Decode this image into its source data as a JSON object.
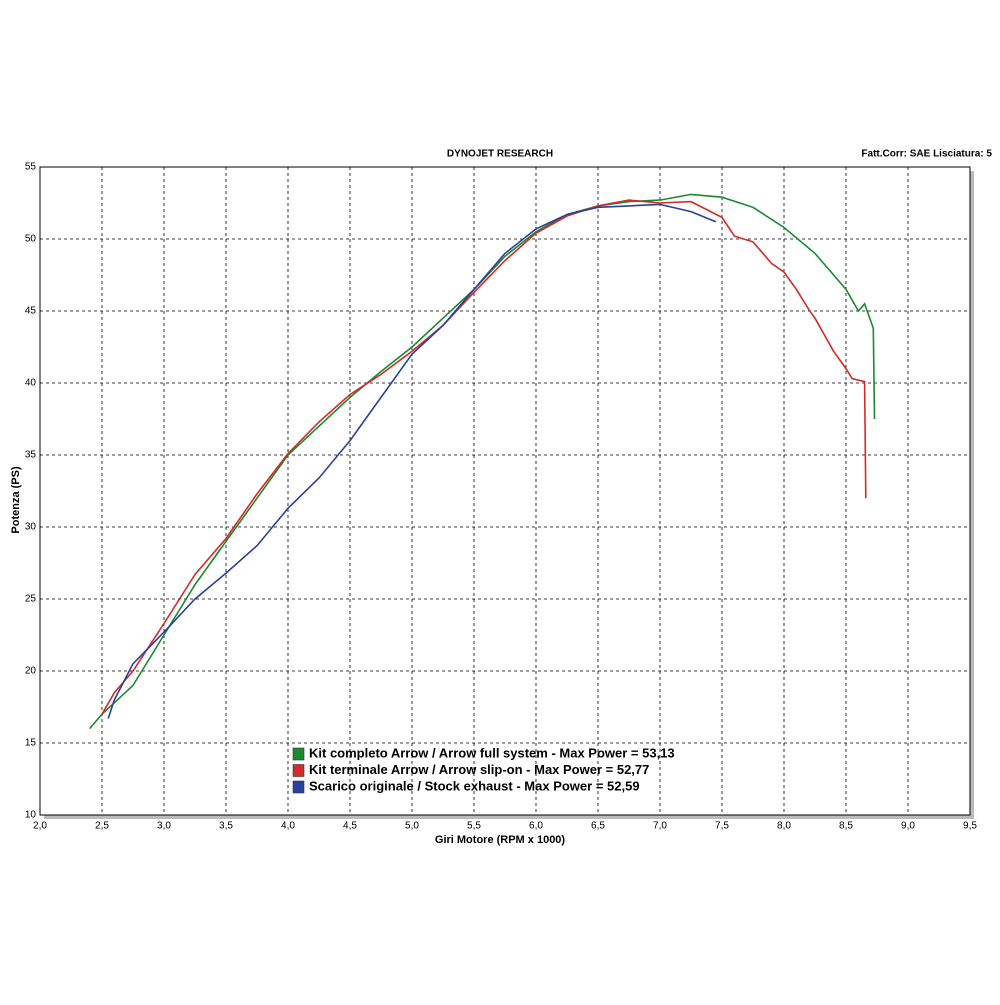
{
  "chart_data": {
    "type": "line",
    "title": "DYNOJET RESEARCH",
    "subtitle": "Fatt.Corr: SAE  Lisciatura: 5",
    "x_label": "Giri Motore (RPM x 1000)",
    "y_label": "Potenza (PS)",
    "xlim": [
      2.0,
      9.5
    ],
    "ylim": [
      10,
      55
    ],
    "xticks": [
      {
        "value": 2.0,
        "label": "2,0"
      },
      {
        "value": 2.5,
        "label": "2,5"
      },
      {
        "value": 3.0,
        "label": "3,0"
      },
      {
        "value": 3.5,
        "label": "3,5"
      },
      {
        "value": 4.0,
        "label": "4,0"
      },
      {
        "value": 4.5,
        "label": "4,5"
      },
      {
        "value": 5.0,
        "label": "5,0"
      },
      {
        "value": 5.5,
        "label": "5,5"
      },
      {
        "value": 6.0,
        "label": "6,0"
      },
      {
        "value": 6.5,
        "label": "6,5"
      },
      {
        "value": 7.0,
        "label": "7,0"
      },
      {
        "value": 7.5,
        "label": "7,5"
      },
      {
        "value": 8.0,
        "label": "8,0"
      },
      {
        "value": 8.5,
        "label": "8,5"
      },
      {
        "value": 9.0,
        "label": "9,0"
      },
      {
        "value": 9.5,
        "label": "9,5"
      }
    ],
    "yticks": [
      10,
      15,
      20,
      25,
      30,
      35,
      40,
      45,
      50,
      55
    ],
    "grid": true,
    "series": [
      {
        "name": "Kit completo Arrow / Arrow full system - Max Power = 53,13",
        "color": "#1a8a2e",
        "x": [
          2.4,
          2.5,
          2.6,
          2.75,
          3.0,
          3.25,
          3.5,
          3.75,
          4.0,
          4.25,
          4.5,
          4.75,
          5.0,
          5.25,
          5.5,
          5.75,
          6.0,
          6.25,
          6.5,
          6.75,
          7.0,
          7.25,
          7.5,
          7.75,
          8.0,
          8.25,
          8.5,
          8.6,
          8.65,
          8.7,
          8.72,
          8.73
        ],
        "values": [
          16,
          17,
          17.8,
          19,
          22.5,
          26,
          29,
          32,
          35,
          37,
          39,
          40.8,
          42.5,
          44.5,
          46.5,
          48.8,
          50.5,
          51.7,
          52.3,
          52.6,
          52.7,
          53.1,
          52.9,
          52.2,
          50.8,
          49,
          46.5,
          45,
          45.5,
          44.3,
          43.8,
          37.5
        ]
      },
      {
        "name": "Kit terminale Arrow / Arrow slip-on - Max Power = 52,77",
        "color": "#d42a2a",
        "x": [
          2.5,
          2.6,
          2.75,
          3.0,
          3.25,
          3.5,
          3.75,
          4.0,
          4.25,
          4.5,
          4.75,
          5.0,
          5.25,
          5.5,
          5.75,
          6.0,
          6.25,
          6.5,
          6.75,
          7.0,
          7.25,
          7.5,
          7.6,
          7.75,
          7.9,
          8.0,
          8.1,
          8.2,
          8.25,
          8.4,
          8.5,
          8.55,
          8.65,
          8.66
        ],
        "values": [
          17,
          18.5,
          20,
          23.3,
          26.7,
          29.2,
          32.3,
          35.1,
          37.3,
          39.2,
          40.6,
          42.2,
          44,
          46.3,
          48.5,
          50.4,
          51.6,
          52.3,
          52.7,
          52.5,
          52.6,
          51.5,
          50.2,
          49.8,
          48.3,
          47.7,
          46.5,
          45.1,
          44.5,
          42.2,
          41,
          40.3,
          40.1,
          32
        ]
      },
      {
        "name": "Scarico originale / Stock exhaust - Max Power = 52,59",
        "color": "#2b3f9e",
        "x": [
          2.55,
          2.6,
          2.75,
          3.0,
          3.25,
          3.5,
          3.75,
          4.0,
          4.25,
          4.5,
          4.75,
          5.0,
          5.25,
          5.5,
          5.75,
          6.0,
          6.25,
          6.5,
          6.75,
          7.0,
          7.25,
          7.45
        ],
        "values": [
          16.7,
          18,
          20.5,
          22.7,
          25,
          26.8,
          28.7,
          31.3,
          33.4,
          36,
          39,
          42,
          44,
          46.5,
          49,
          50.7,
          51.7,
          52.2,
          52.3,
          52.4,
          51.9,
          51.2
        ]
      }
    ]
  }
}
